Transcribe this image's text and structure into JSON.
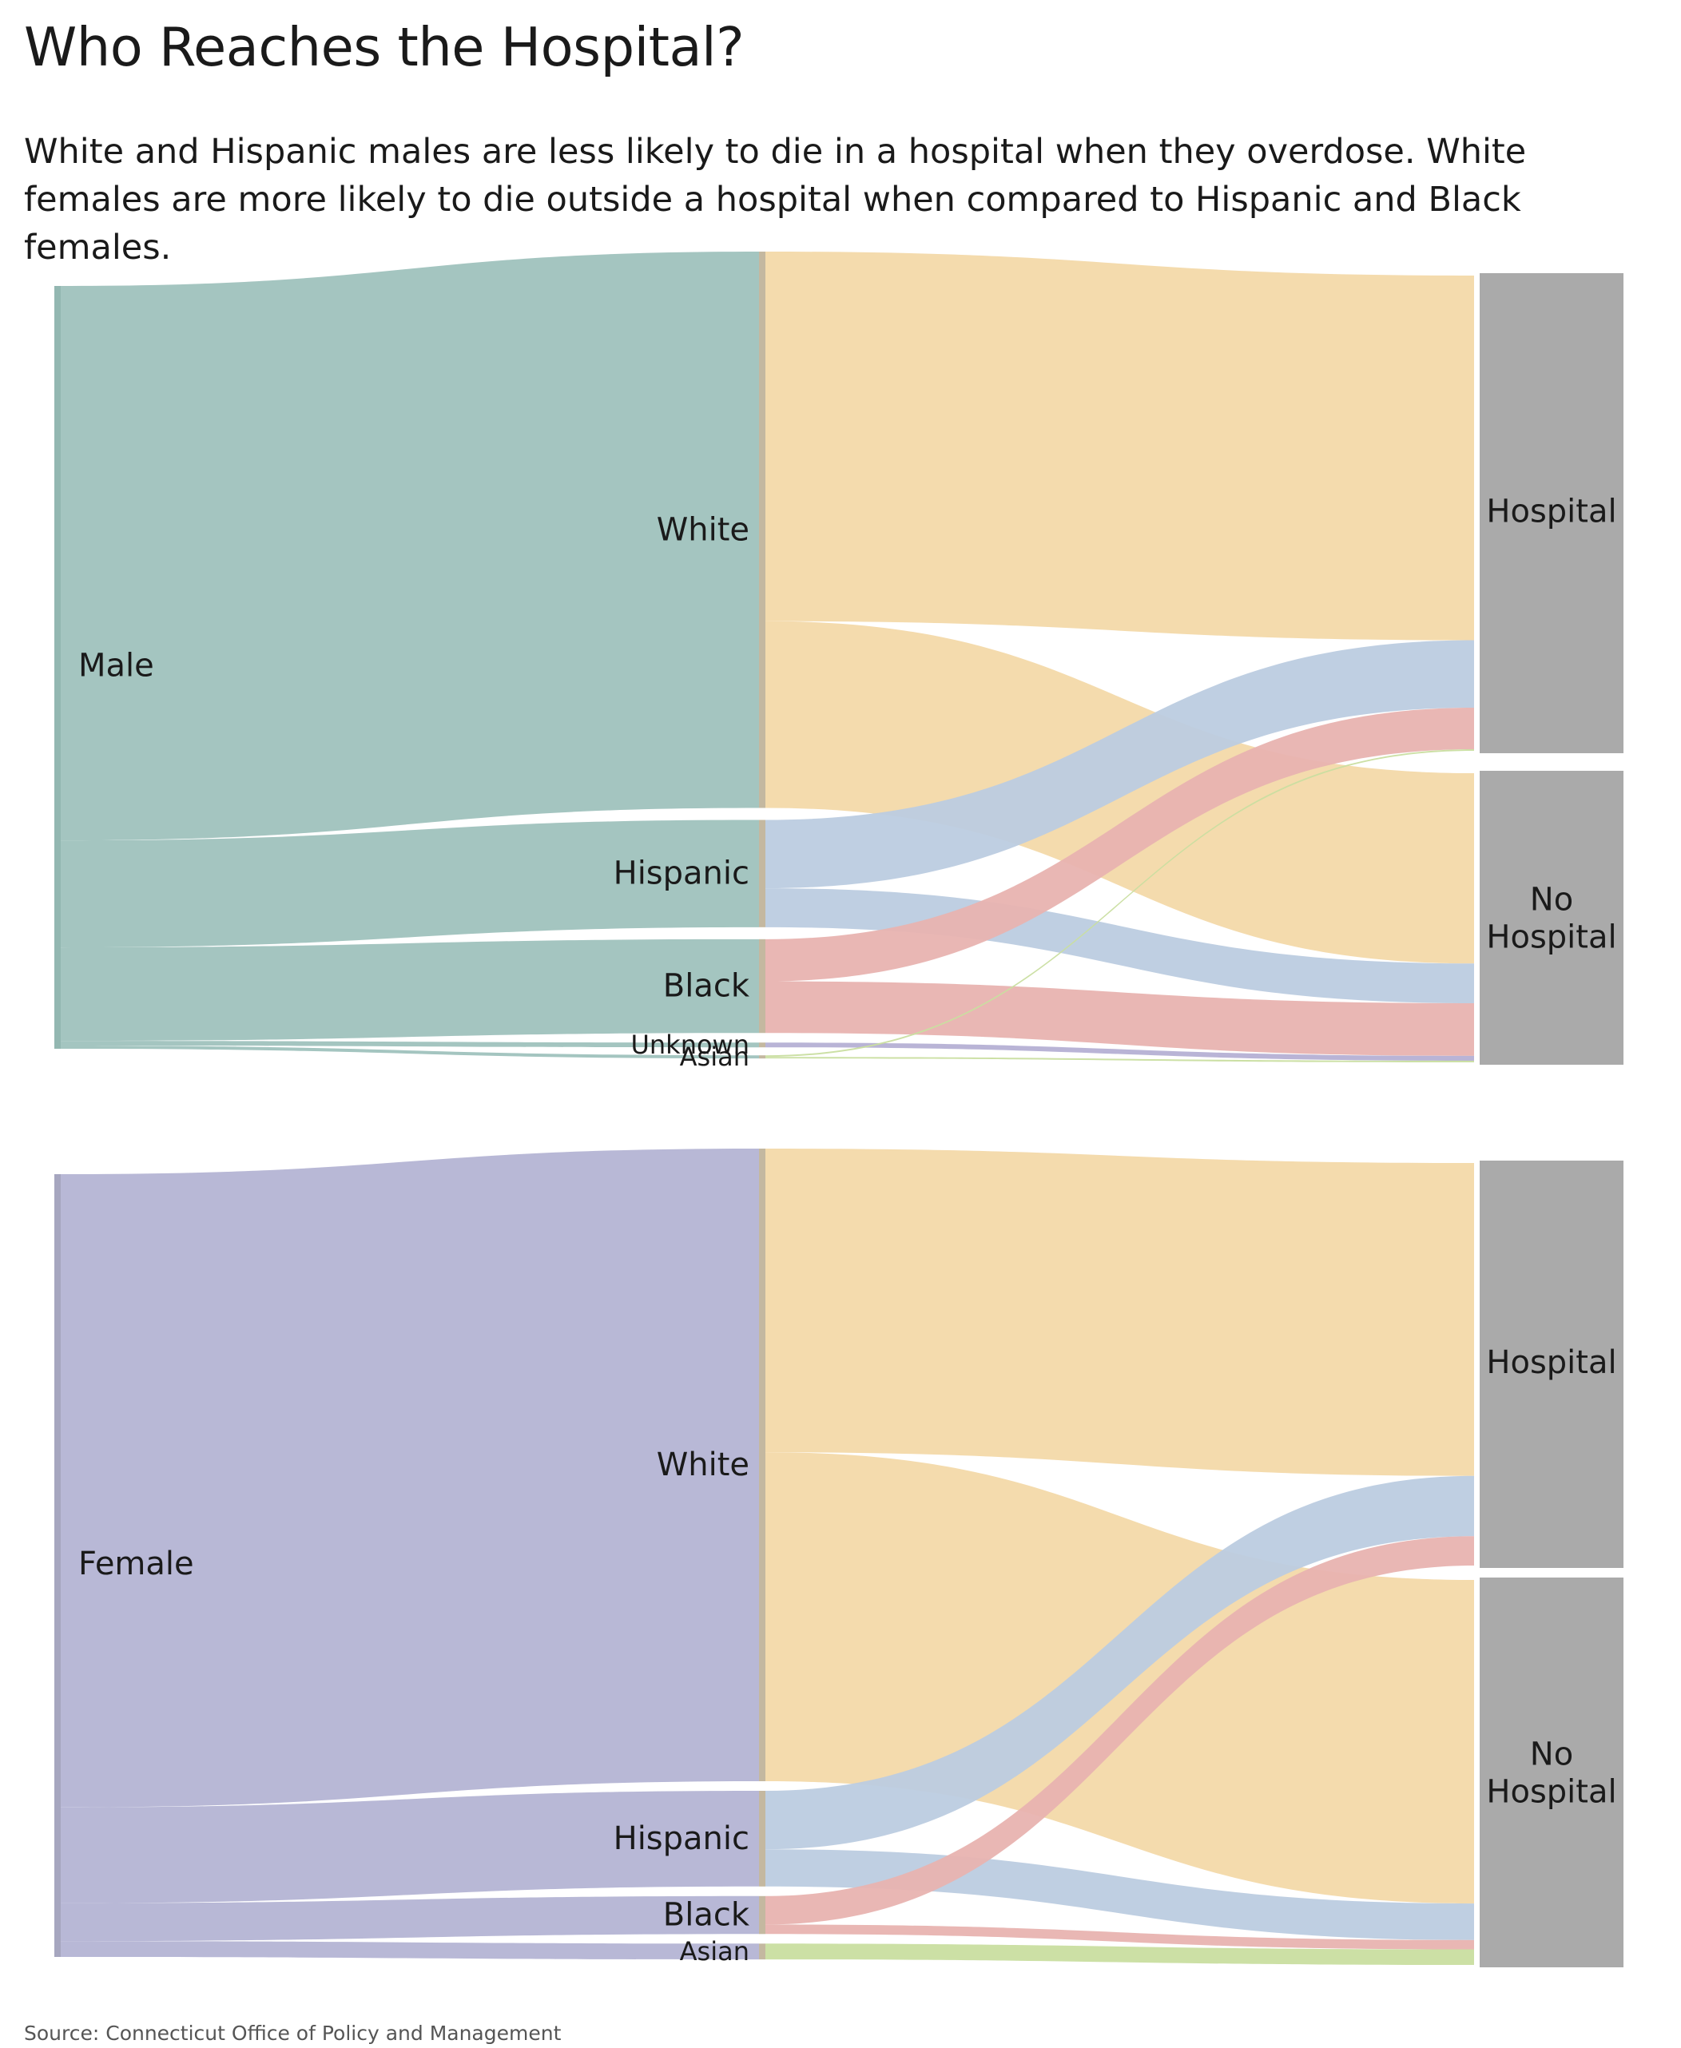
{
  "title": "Who Reaches the Hospital?",
  "subtitle": "White and Hispanic males are less likely to die in a hospital when they overdose. White females are more likely to die outside a hospital when compared to Hispanic and Black females.",
  "source": "Source: Connecticut Office of Policy and Management",
  "colors": {
    "male": "#a4c5c0",
    "male_bar": "#93b7b1",
    "female": "#b8b8d6",
    "female_bar": "#a6a6bf",
    "White": "#f3d9a9",
    "Hispanic": "#bccce0",
    "Black": "#e8b3b0",
    "Unknown": "#b5b0d4",
    "Asian": "#c9dea0",
    "outcome": "#aaaaaa"
  },
  "chart_data": [
    {
      "type": "sankey",
      "panel": "male",
      "nodes": {
        "sex": "Male",
        "races": [
          "White",
          "Hispanic",
          "Black",
          "Unknown",
          "Asian"
        ],
        "outcomes": [
          "Hospital",
          "No Hospital"
        ]
      },
      "links_sex_to_race": [
        {
          "source": "Male",
          "target": "White",
          "value": 70
        },
        {
          "source": "Male",
          "target": "Hispanic",
          "value": 13.5
        },
        {
          "source": "Male",
          "target": "Black",
          "value": 11.8
        },
        {
          "source": "Male",
          "target": "Unknown",
          "value": 0.6
        },
        {
          "source": "Male",
          "target": "Asian",
          "value": 0.4
        }
      ],
      "links_race_to_outcome": [
        {
          "source": "White",
          "target": "Hospital",
          "value": 46.5
        },
        {
          "source": "White",
          "target": "No Hospital",
          "value": 23.5
        },
        {
          "source": "Hispanic",
          "target": "Hospital",
          "value": 8.6
        },
        {
          "source": "Hispanic",
          "target": "No Hospital",
          "value": 4.9
        },
        {
          "source": "Black",
          "target": "Hospital",
          "value": 5.3
        },
        {
          "source": "Black",
          "target": "No Hospital",
          "value": 6.5
        },
        {
          "source": "Unknown",
          "target": "No Hospital",
          "value": 0.6
        },
        {
          "source": "Asian",
          "target": "Hospital",
          "value": 0.2
        },
        {
          "source": "Asian",
          "target": "No Hospital",
          "value": 0.2
        }
      ]
    },
    {
      "type": "sankey",
      "panel": "female",
      "nodes": {
        "sex": "Female",
        "races": [
          "White",
          "Hispanic",
          "Black",
          "Asian"
        ],
        "outcomes": [
          "Hospital",
          "No Hospital"
        ]
      },
      "links_sex_to_race": [
        {
          "source": "Female",
          "target": "White",
          "value": 80
        },
        {
          "source": "Female",
          "target": "Hispanic",
          "value": 12.1
        },
        {
          "source": "Female",
          "target": "Black",
          "value": 4.8
        },
        {
          "source": "Female",
          "target": "Asian",
          "value": 2.0
        }
      ],
      "links_race_to_outcome": [
        {
          "source": "White",
          "target": "Hospital",
          "value": 38.4
        },
        {
          "source": "White",
          "target": "No Hospital",
          "value": 41.6
        },
        {
          "source": "Hispanic",
          "target": "Hospital",
          "value": 7.4
        },
        {
          "source": "Hispanic",
          "target": "No Hospital",
          "value": 4.7
        },
        {
          "source": "Black",
          "target": "Hospital",
          "value": 3.6
        },
        {
          "source": "Black",
          "target": "No Hospital",
          "value": 1.2
        },
        {
          "source": "Asian",
          "target": "No Hospital",
          "value": 2.0
        }
      ]
    }
  ]
}
